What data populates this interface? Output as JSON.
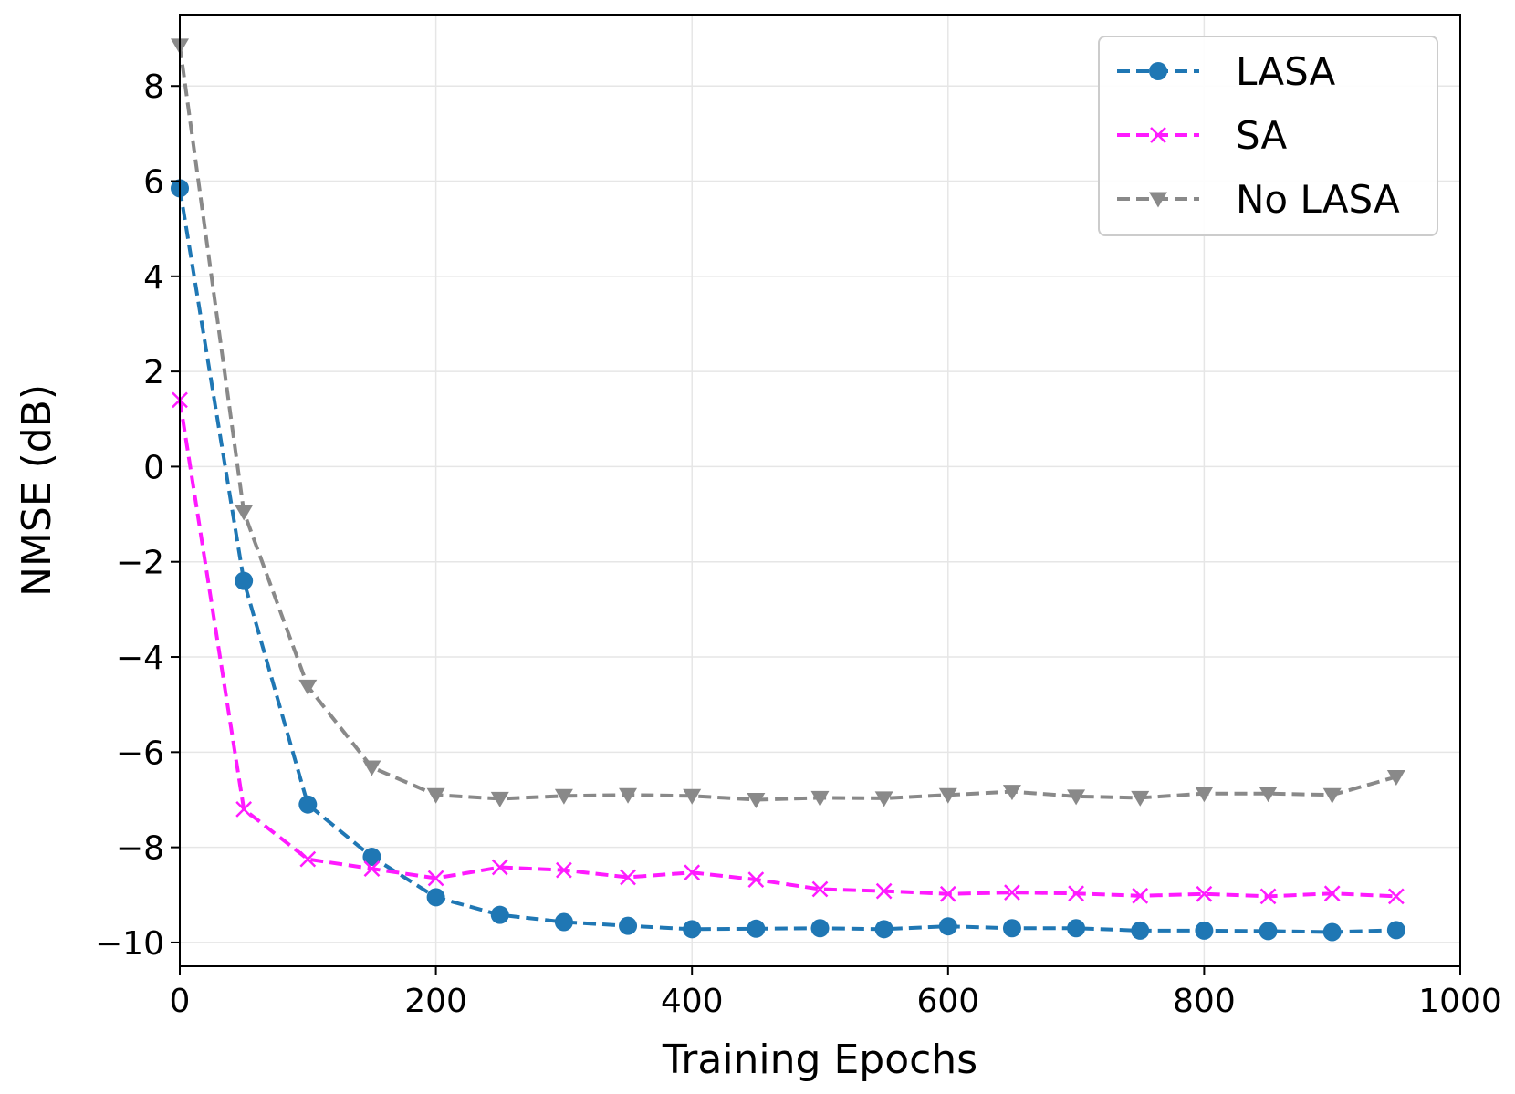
{
  "chart_data": {
    "type": "line",
    "title": "",
    "xlabel": "Training Epochs",
    "ylabel": "NMSE (dB)",
    "xlim": [
      0,
      1000
    ],
    "ylim": [
      -10.5,
      9.5
    ],
    "xticks": [
      0,
      200,
      400,
      600,
      800,
      1000
    ],
    "xtick_labels": [
      "0",
      "200",
      "400",
      "600",
      "800",
      "1000"
    ],
    "yticks": [
      -10,
      -8,
      -6,
      -4,
      -2,
      0,
      2,
      4,
      6,
      8
    ],
    "ytick_labels": [
      "−10",
      "−8",
      "−6",
      "−4",
      "−2",
      "0",
      "2",
      "4",
      "6",
      "8"
    ],
    "grid": true,
    "legend_position": "top-right",
    "x": [
      0,
      50,
      100,
      150,
      200,
      250,
      300,
      350,
      400,
      450,
      500,
      550,
      600,
      650,
      700,
      750,
      800,
      850,
      900,
      950
    ],
    "series": [
      {
        "name": "LASA",
        "color": "#1f77b4",
        "marker": "circle",
        "values": [
          5.85,
          -2.4,
          -7.1,
          -8.2,
          -9.05,
          -9.42,
          -9.57,
          -9.65,
          -9.72,
          -9.71,
          -9.7,
          -9.72,
          -9.66,
          -9.7,
          -9.7,
          -9.75,
          -9.75,
          -9.76,
          -9.78,
          -9.74
        ]
      },
      {
        "name": "SA",
        "color": "#ff1aff",
        "marker": "x",
        "values": [
          1.4,
          -7.2,
          -8.25,
          -8.45,
          -8.65,
          -8.42,
          -8.48,
          -8.63,
          -8.53,
          -8.68,
          -8.88,
          -8.92,
          -8.98,
          -8.95,
          -8.97,
          -9.02,
          -8.98,
          -9.03,
          -8.97,
          -9.03
        ]
      },
      {
        "name": "No LASA",
        "color": "#898989",
        "marker": "triangle-down",
        "values": [
          8.85,
          -0.95,
          -4.62,
          -6.32,
          -6.9,
          -6.98,
          -6.92,
          -6.9,
          -6.92,
          -7.0,
          -6.96,
          -6.97,
          -6.9,
          -6.83,
          -6.93,
          -6.96,
          -6.87,
          -6.87,
          -6.9,
          -6.52
        ]
      }
    ]
  }
}
